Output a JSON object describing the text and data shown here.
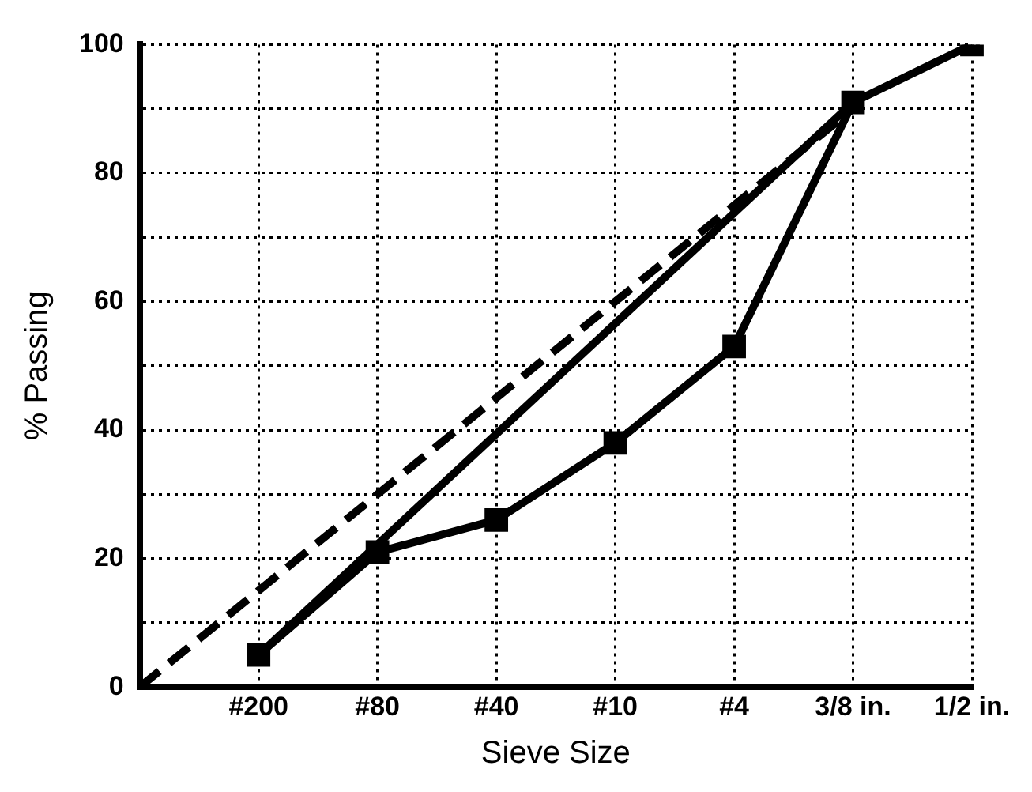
{
  "chart_data": {
    "type": "line",
    "xlabel": "Sieve Size",
    "ylabel": "% Passing",
    "categories": [
      null,
      "#200",
      "#80",
      "#40",
      "#10",
      "#4",
      "3/8 in.",
      "1/2 in."
    ],
    "series": [
      {
        "color": "#000000",
        "line_style": "dashed",
        "marker": "none",
        "values": [
          0,
          null,
          null,
          null,
          null,
          null,
          90,
          null
        ]
      },
      {
        "color": "#000000",
        "line_style": "solid",
        "values": [
          null,
          5,
          null,
          null,
          null,
          null,
          91,
          null
        ]
      },
      {
        "color": "#000000",
        "line_style": "solid",
        "marker": "square",
        "values": [
          null,
          5,
          21,
          26,
          38,
          53,
          91,
          100
        ]
      }
    ],
    "ylim": [
      0,
      100
    ],
    "yticks": [
      0,
      {
        "value": 10,
        "label": null
      },
      20,
      {
        "value": 30,
        "label": null
      },
      40,
      {
        "value": 50,
        "label": null
      },
      60,
      {
        "value": 70,
        "label": null
      },
      80,
      {
        "value": 90,
        "label": null
      },
      100
    ],
    "grid": true,
    "legend": false
  }
}
